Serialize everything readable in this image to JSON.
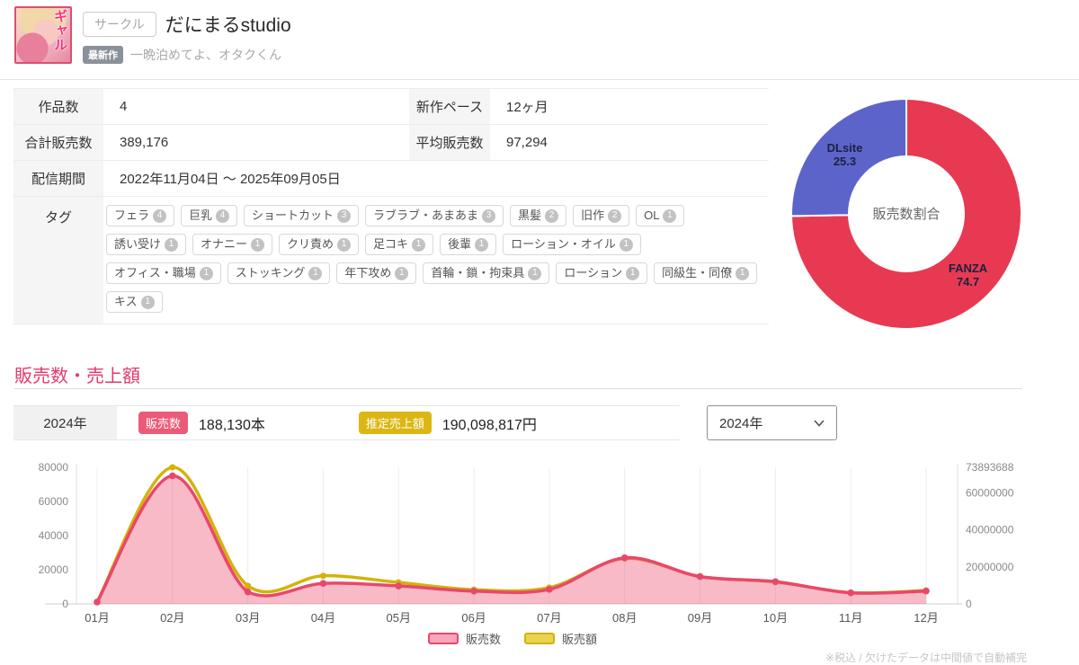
{
  "header": {
    "circle_badge": "サークル",
    "title": "だにまるstudio",
    "latest_badge": "最新作",
    "latest_work": "一晩泊めてよ、オタクくん",
    "avatar_text": "ギャル"
  },
  "stats": {
    "works_label": "作品数",
    "works_value": "4",
    "pace_label": "新作ペース",
    "pace_value": "12ヶ月",
    "total_label": "合計販売数",
    "total_value": "389,176",
    "avg_label": "平均販売数",
    "avg_value": "97,294",
    "period_label": "配信期間",
    "period_value": "2022年11月04日 ～ 2025年09月05日",
    "tags_label": "タグ",
    "tags": [
      {
        "label": "フェラ",
        "count": 4
      },
      {
        "label": "巨乳",
        "count": 4
      },
      {
        "label": "ショートカット",
        "count": 3
      },
      {
        "label": "ラブラブ・あまあま",
        "count": 3
      },
      {
        "label": "黒髪",
        "count": 2
      },
      {
        "label": "旧作",
        "count": 2
      },
      {
        "label": "OL",
        "count": 1
      },
      {
        "label": "誘い受け",
        "count": 1
      },
      {
        "label": "オナニー",
        "count": 1
      },
      {
        "label": "クリ責め",
        "count": 1
      },
      {
        "label": "足コキ",
        "count": 1
      },
      {
        "label": "後輩",
        "count": 1
      },
      {
        "label": "ローション・オイル",
        "count": 1
      },
      {
        "label": "オフィス・職場",
        "count": 1
      },
      {
        "label": "ストッキング",
        "count": 1
      },
      {
        "label": "年下攻め",
        "count": 1
      },
      {
        "label": "首輪・鎖・拘束具",
        "count": 1
      },
      {
        "label": "ローション",
        "count": 1
      },
      {
        "label": "同級生・同僚",
        "count": 1
      },
      {
        "label": "キス",
        "count": 1
      }
    ]
  },
  "sales": {
    "section_title": "販売数・売上額",
    "year_label": "2024年",
    "units_badge": "販売数",
    "units_value": "188,130本",
    "amount_badge": "推定売上額",
    "amount_value": "190,098,817円",
    "year_select_value": "2024年",
    "footnote": "※税込 / 欠けたデータは中間値で自動補完"
  },
  "chart_data": [
    {
      "type": "pie",
      "title": "販売数割合",
      "labels": [
        "FANZA",
        "DLsite"
      ],
      "values": [
        74.7,
        25.3
      ],
      "colors": [
        "#e73a52",
        "#5d64c9"
      ],
      "label_color": "#1b2140",
      "center_label_color": "#666666",
      "donut_hole_ratio": 0.5
    },
    {
      "type": "area",
      "title": "販売数・売上額 月別推移",
      "categories": [
        "01月",
        "02月",
        "03月",
        "04月",
        "05月",
        "06月",
        "07月",
        "08月",
        "09月",
        "10月",
        "11月",
        "12月"
      ],
      "series": [
        {
          "name": "販売数",
          "axis": "left",
          "color": "#e8486b",
          "fill": "rgba(236,90,120,0.42)",
          "legend_fill": "#f7a6bb",
          "values": [
            1100,
            75000,
            7000,
            12000,
            10500,
            7500,
            8500,
            27000,
            16000,
            13000,
            6500,
            7500
          ]
        },
        {
          "name": "販売額",
          "axis": "right",
          "color": "#d3b30a",
          "fill": "none",
          "legend_fill": "#e9d34f",
          "values": [
            1000000,
            73893688,
            9800000,
            15200000,
            11600000,
            7700000,
            8800000,
            24600000,
            14800000,
            11900000,
            6100000,
            7300000
          ]
        }
      ],
      "left_axis": {
        "ticks": [
          0,
          20000,
          40000,
          60000,
          80000
        ],
        "max": 80000
      },
      "right_axis": {
        "ticks": [
          0,
          20000000,
          40000000,
          60000000,
          73893688
        ],
        "max": 73893688
      },
      "grid": "vertical-only",
      "legend_position": "bottom"
    }
  ]
}
